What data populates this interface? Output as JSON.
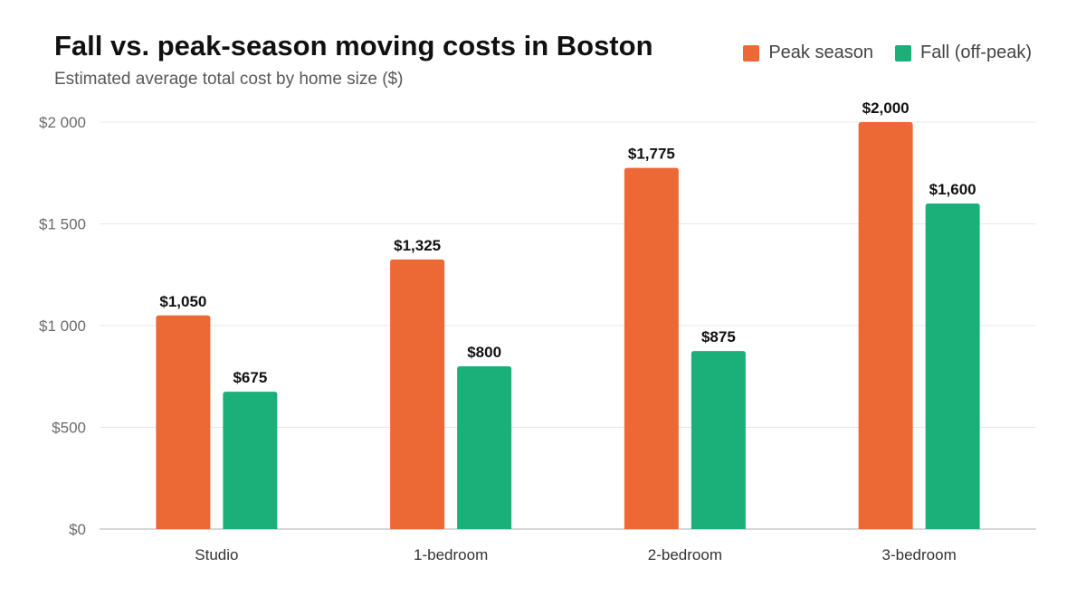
{
  "chart_data": {
    "type": "bar",
    "title": "Fall vs. peak-season moving costs in Boston",
    "subtitle": "Estimated average total cost by home size ($)",
    "xlabel": "",
    "ylabel": "",
    "categories": [
      "Studio",
      "1-bedroom",
      "2-bedroom",
      "3-bedroom"
    ],
    "series": [
      {
        "name": "Peak season",
        "color": "#EC6936",
        "values": [
          1050,
          1325,
          1775,
          2000
        ],
        "labels": [
          "$1,050",
          "$1,325",
          "$1,775",
          "$2,000"
        ]
      },
      {
        "name": "Fall (off-peak)",
        "color": "#1BB07A",
        "values": [
          675,
          800,
          875,
          1600
        ],
        "labels": [
          "$675",
          "$800",
          "$875",
          "$1,600"
        ]
      }
    ],
    "ylim": [
      0,
      2000
    ],
    "yticks": [
      0,
      500,
      1000,
      1500,
      2000
    ],
    "ytick_labels": [
      "$0",
      "$500",
      "$1 000",
      "$1 500",
      "$2 000"
    ],
    "grid": true,
    "legend_position": "top-right"
  }
}
